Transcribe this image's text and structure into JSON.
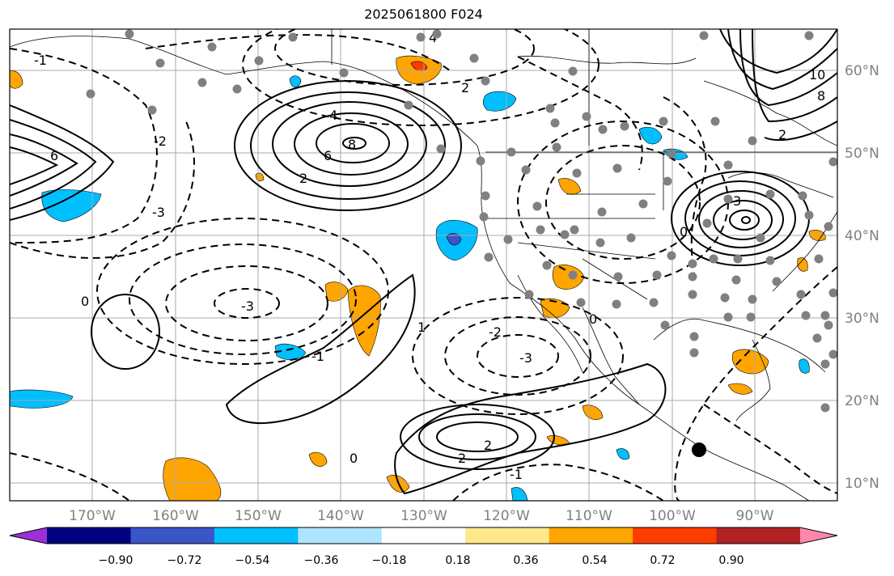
{
  "title": "2025061800 F024",
  "map": {
    "lon_labels": [
      "170°W",
      "160°W",
      "150°W",
      "140°W",
      "130°W",
      "120°W",
      "110°W",
      "100°W",
      "90°W"
    ],
    "lat_labels": [
      "60°N",
      "50°N",
      "40°N",
      "30°N",
      "20°N",
      "10°N"
    ],
    "contour_labels": [
      "4",
      "6",
      "2",
      "8",
      "-3",
      "0",
      "-1",
      "2",
      "-2",
      "-3",
      "-1",
      "4",
      "6",
      "10",
      "8",
      "2",
      "0",
      "3",
      "0",
      "-1",
      "2",
      "-2",
      "-3",
      "2",
      "0",
      "1"
    ]
  },
  "colorbar": {
    "colors": [
      "#9b30d8",
      "#000080",
      "#3a55c8",
      "#00bfff",
      "#aee4ff",
      "#ffffff",
      "#ffe88a",
      "#ffa500",
      "#ff3c00",
      "#b22222",
      "#ff88aa"
    ],
    "labels": [
      "−0.90",
      "−0.72",
      "−0.54",
      "−0.36",
      "−0.18",
      "0.18",
      "0.36",
      "0.54",
      "0.72",
      "0.90"
    ]
  },
  "colors": {
    "gray_station": "#808080",
    "grid": "#a9a9a9"
  }
}
